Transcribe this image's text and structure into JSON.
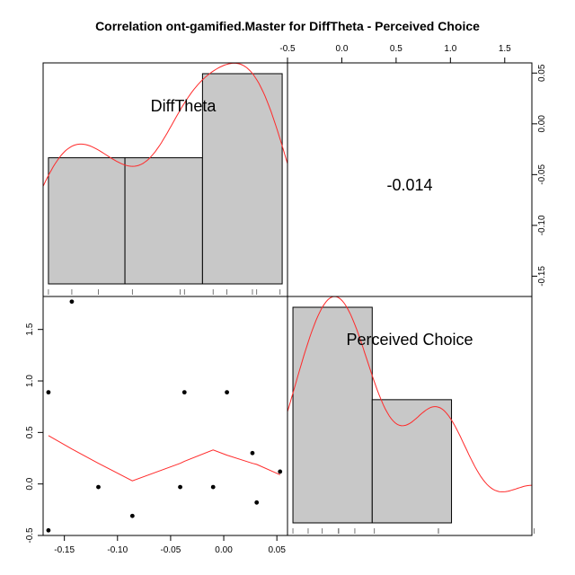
{
  "chart_data": {
    "type": "scatter",
    "title": "Correlation ont-gamified.Master for DiffTheta - Perceived Choice",
    "variables": [
      "DiffTheta",
      "Perceived Choice"
    ],
    "correlation_label": "-0.014",
    "colors": {
      "histogram_fill": "#c8c8c8",
      "density_line": "#ff2a2a",
      "points": "#000000",
      "smooth_line": "#ff2a2a",
      "axes": "#000000"
    },
    "diag_difftheta": {
      "xlim": [
        -0.17,
        0.06
      ],
      "bin_edges": [
        -0.165,
        -0.093,
        -0.02,
        0.055
      ],
      "rug": [
        -0.165,
        -0.143,
        -0.118,
        -0.086,
        -0.041,
        -0.037,
        -0.01,
        0.003,
        0.027,
        0.031,
        0.053
      ]
    },
    "diag_perceived_choice": {
      "xlim": [
        -0.5,
        1.75
      ],
      "bin_edges": [
        -0.45,
        0.28,
        1.01,
        1.75
      ],
      "rug": [
        -0.45,
        -0.31,
        -0.18,
        -0.03,
        -0.03,
        -0.03,
        0.12,
        0.3,
        0.89,
        0.89,
        0.89,
        1.77
      ]
    },
    "scatter": {
      "xlabel": "DiffTheta",
      "ylabel": "Perceived Choice",
      "xlim": [
        -0.17,
        0.06
      ],
      "ylim": [
        -0.5,
        1.82
      ],
      "x_ticks": [
        -0.15,
        -0.1,
        -0.05,
        0.0,
        0.05
      ],
      "x_tick_labels": [
        "-0.15",
        "-0.10",
        "-0.05",
        "0.00",
        "0.05"
      ],
      "y_ticks": [
        -0.5,
        0.0,
        0.5,
        1.0,
        1.5
      ],
      "y_tick_labels": [
        "-0.5",
        "0.0",
        "0.5",
        "1.0",
        "1.5"
      ],
      "points": [
        [
          -0.165,
          0.89
        ],
        [
          -0.165,
          -0.45
        ],
        [
          -0.143,
          1.77
        ],
        [
          -0.118,
          -0.03
        ],
        [
          -0.086,
          -0.31
        ],
        [
          -0.041,
          -0.03
        ],
        [
          -0.037,
          0.89
        ],
        [
          -0.01,
          -0.03
        ],
        [
          0.003,
          0.89
        ],
        [
          0.027,
          0.3
        ],
        [
          0.031,
          -0.18
        ],
        [
          0.053,
          0.12
        ]
      ],
      "smooth": [
        [
          -0.165,
          0.47
        ],
        [
          -0.143,
          0.34
        ],
        [
          -0.118,
          0.2
        ],
        [
          -0.086,
          0.03
        ],
        [
          -0.041,
          0.2
        ],
        [
          -0.037,
          0.22
        ],
        [
          -0.01,
          0.33
        ],
        [
          0.003,
          0.28
        ],
        [
          0.027,
          0.2
        ],
        [
          0.031,
          0.19
        ],
        [
          0.053,
          0.09
        ]
      ]
    },
    "top_axis": {
      "ticks": [
        -0.5,
        0.0,
        0.5,
        1.0,
        1.5
      ],
      "tick_labels": [
        "-0.5",
        "0.0",
        "0.5",
        "1.0",
        "1.5"
      ]
    },
    "right_axis": {
      "ylim": [
        -0.17,
        0.06
      ],
      "ticks": [
        -0.15,
        -0.1,
        -0.05,
        0.0,
        0.05
      ],
      "tick_labels": [
        "-0.15",
        "-0.10",
        "-0.05",
        "0.00",
        "0.05"
      ]
    }
  }
}
